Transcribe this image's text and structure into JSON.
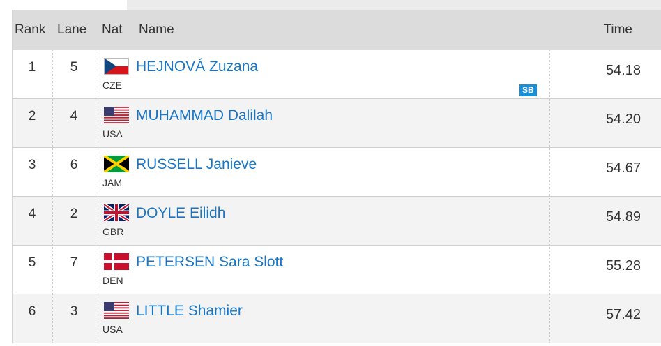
{
  "header": {
    "rank": "Rank",
    "lane": "Lane",
    "nat": "Nat",
    "name": "Name",
    "time": "Time"
  },
  "rows": [
    {
      "rank": "1",
      "lane": "5",
      "nat": "CZE",
      "flag_icon": "czech-flag-icon",
      "name": "HEJNOVÁ Zuzana",
      "badge": "SB",
      "time": "54.18"
    },
    {
      "rank": "2",
      "lane": "4",
      "nat": "USA",
      "flag_icon": "usa-flag-icon",
      "name": "MUHAMMAD Dalilah",
      "badge": "",
      "time": "54.20"
    },
    {
      "rank": "3",
      "lane": "6",
      "nat": "JAM",
      "flag_icon": "jamaica-flag-icon",
      "name": "RUSSELL Janieve",
      "badge": "",
      "time": "54.67"
    },
    {
      "rank": "4",
      "lane": "2",
      "nat": "GBR",
      "flag_icon": "uk-flag-icon",
      "name": "DOYLE Eilidh",
      "badge": "",
      "time": "54.89"
    },
    {
      "rank": "5",
      "lane": "7",
      "nat": "DEN",
      "flag_icon": "denmark-flag-icon",
      "name": "PETERSEN Sara Slott",
      "badge": "",
      "time": "55.28"
    },
    {
      "rank": "6",
      "lane": "3",
      "nat": "USA",
      "flag_icon": "usa-flag-icon",
      "name": "LITTLE Shamier",
      "badge": "",
      "time": "57.42"
    }
  ],
  "colors": {
    "link": "#1a76c4",
    "badge": "#1a8fd6",
    "header_bg": "#dcdcdc",
    "row_alt_bg": "#f3f3f3"
  }
}
